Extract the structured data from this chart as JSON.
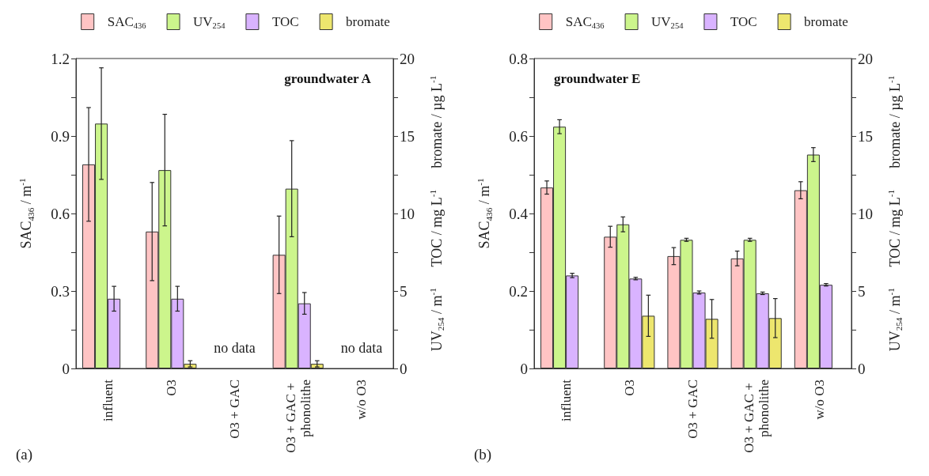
{
  "chart_data": [
    {
      "type": "bar",
      "title": "groundwater A",
      "annotations": [
        "(a)",
        "no data",
        "no data"
      ],
      "categories": [
        "influent",
        "O3",
        "O3 + GAC",
        "O3 + GAC + phonolithe",
        "w/o O3"
      ],
      "ylabel": "SAC$_{436}$ / m$^{-1}$",
      "y2label": "UV$_{254}$ / m$^{-1}$      TOC / mg L$^{-1}$      bromate / µg L$^{-1}$",
      "ylim": [
        0,
        1.2
      ],
      "yticks": [
        0,
        {
          "value": 0.15,
          "label": null
        },
        0.3,
        {
          "value": 0.45,
          "label": null
        },
        0.6,
        {
          "value": 0.75,
          "label": null
        },
        0.9,
        {
          "value": 1.05,
          "label": null
        },
        1.2
      ],
      "y2lim": [
        0,
        20
      ],
      "y2ticks": [
        0,
        {
          "value": 2.5,
          "label": null
        },
        5,
        {
          "value": 7.5,
          "label": null
        },
        10,
        {
          "value": 12.5,
          "label": null
        },
        15,
        {
          "value": 17.5,
          "label": null
        },
        20
      ],
      "legend": "top",
      "series": [
        {
          "name": "SAC$_{436}$",
          "color": "#ffc4c4",
          "values": [
            0.79,
            0.53,
            null,
            0.44,
            null
          ],
          "errors": [
            0.22,
            0.19,
            null,
            0.15,
            null
          ]
        },
        {
          "name": "UV$_{254}$",
          "color": "#ccf58c",
          "axis": "y2",
          "values": [
            15.8,
            12.8,
            null,
            11.6,
            null
          ],
          "errors": [
            3.6,
            3.6,
            null,
            3.1,
            null
          ]
        },
        {
          "name": "TOC",
          "color": "#d9b3ff",
          "axis": "y2",
          "values": [
            4.5,
            4.5,
            null,
            4.2,
            null
          ],
          "errors": [
            0.8,
            0.8,
            null,
            0.7,
            null
          ]
        },
        {
          "name": "bromate",
          "color": "#ede66e",
          "axis": "y2",
          "values": [
            null,
            0.3,
            null,
            0.3,
            null
          ],
          "errors": [
            null,
            0.2,
            null,
            0.2,
            null
          ]
        }
      ]
    },
    {
      "type": "bar",
      "title": "groundwater E",
      "annotations": [
        "(b)"
      ],
      "categories": [
        "influent",
        "O3",
        "O3 + GAC",
        "O3 + GAC + phonolithe",
        "w/o O3"
      ],
      "ylabel": "SAC$_{436}$ / m$^{-1}$",
      "y2label": "UV$_{254}$ / m$^{-1}$      TOC / mg L$^{-1}$      bromate / µg L$^{-1}$",
      "ylim": [
        0,
        0.8
      ],
      "yticks": [
        0,
        {
          "value": 0.1,
          "label": null
        },
        0.2,
        {
          "value": 0.3,
          "label": null
        },
        0.4,
        {
          "value": 0.5,
          "label": null
        },
        0.6,
        {
          "value": 0.7,
          "label": null
        },
        0.8
      ],
      "y2lim": [
        0,
        20
      ],
      "y2ticks": [
        0,
        {
          "value": 2.5,
          "label": null
        },
        5,
        {
          "value": 7.5,
          "label": null
        },
        10,
        {
          "value": 12.5,
          "label": null
        },
        15,
        {
          "value": 17.5,
          "label": null
        },
        20
      ],
      "legend": "top",
      "series": [
        {
          "name": "SAC$_{436}$",
          "color": "#ffc4c4",
          "values": [
            0.467,
            0.34,
            0.29,
            0.284,
            0.46
          ],
          "errors": [
            0.017,
            0.027,
            0.022,
            0.019,
            0.022
          ]
        },
        {
          "name": "UV$_{254}$",
          "color": "#ccf58c",
          "axis": "y2",
          "values": [
            15.6,
            9.3,
            8.3,
            8.3,
            13.8
          ],
          "errors": [
            0.45,
            0.48,
            0.1,
            0.1,
            0.45
          ]
        },
        {
          "name": "TOC",
          "color": "#d9b3ff",
          "axis": "y2",
          "values": [
            6.0,
            5.8,
            4.9,
            4.85,
            5.4
          ],
          "errors": [
            0.14,
            0.08,
            0.1,
            0.08,
            0.08
          ]
        },
        {
          "name": "bromate",
          "color": "#ede66e",
          "axis": "y2",
          "values": [
            null,
            3.4,
            3.2,
            3.25,
            null
          ],
          "errors": [
            null,
            1.33,
            1.25,
            1.26,
            null
          ]
        }
      ]
    }
  ]
}
